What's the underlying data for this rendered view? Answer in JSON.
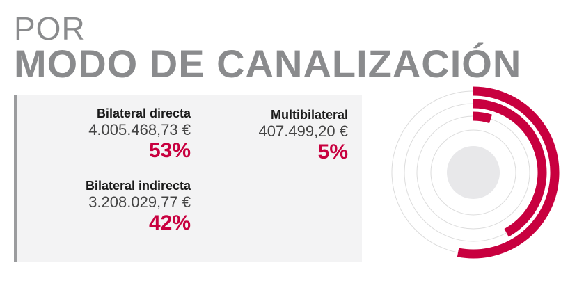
{
  "header": {
    "line1": "POR",
    "line2": "MODO DE CANALIZACIÓN"
  },
  "legend": {
    "items": [
      {
        "label": "Bilateral directa",
        "amount": "4.005.468,73 €",
        "percent": "53%"
      },
      {
        "label": "Multibilateral",
        "amount": "407.499,20 €",
        "percent": "5%"
      },
      {
        "label": "Bilateral indirecta",
        "amount": "3.208.029,77 €",
        "percent": "42%"
      }
    ]
  },
  "chart_data": {
    "type": "radial-bar",
    "series": [
      {
        "name": "Bilateral directa",
        "value": 53
      },
      {
        "name": "Bilateral indirecta",
        "value": 42
      },
      {
        "name": "Multibilateral",
        "value": 5
      }
    ],
    "max": 100,
    "colors": {
      "bar": "#c8003f",
      "track": "#dcdcdc",
      "center": "#e8e8ea"
    }
  }
}
